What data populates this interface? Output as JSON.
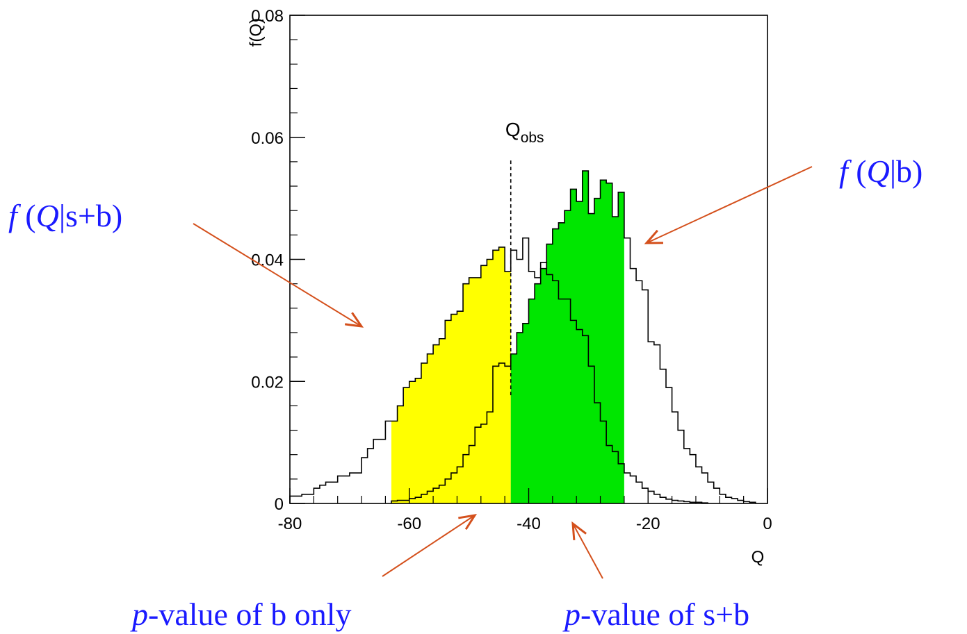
{
  "chart_data": {
    "type": "histogram",
    "xlabel": "Q",
    "ylabel": "f(Q)",
    "xlim": [
      -80,
      0
    ],
    "ylim": [
      0,
      0.08
    ],
    "x_ticks": [
      -80,
      -60,
      -40,
      -20,
      0
    ],
    "x_tick_labels": [
      "-80",
      "-60",
      "-40",
      "-20",
      "0"
    ],
    "y_ticks": [
      0,
      0.02,
      0.04,
      0.06,
      0.08
    ],
    "y_tick_labels": [
      "0",
      "0.02",
      "0.04",
      "0.06",
      "0.08"
    ],
    "grid": false,
    "bin_width": 1,
    "q_obs": -43,
    "q_obs_label": {
      "main": "Q",
      "sub": "obs"
    },
    "series": [
      {
        "name": "f(Q|s+b)",
        "color": "#000000",
        "bin_start": -80,
        "values": [
          0.0012,
          0.0012,
          0.0015,
          0.0015,
          0.0025,
          0.003,
          0.0035,
          0.0035,
          0.0045,
          0.0045,
          0.005,
          0.005,
          0.0075,
          0.009,
          0.0105,
          0.0105,
          0.0135,
          0.0135,
          0.016,
          0.019,
          0.02,
          0.0205,
          0.023,
          0.0245,
          0.026,
          0.027,
          0.03,
          0.031,
          0.0315,
          0.036,
          0.037,
          0.037,
          0.039,
          0.04,
          0.0415,
          0.042,
          0.038,
          0.0415,
          0.04,
          0.0435,
          0.038,
          0.037,
          0.0395,
          0.0375,
          0.0365,
          0.0335,
          0.0335,
          0.03,
          0.0285,
          0.0275,
          0.0225,
          0.0165,
          0.0135,
          0.0095,
          0.0085,
          0.0065,
          0.005,
          0.0045,
          0.0035,
          0.0025,
          0.002,
          0.0015,
          0.001,
          0.0007,
          0.0005,
          0.0004,
          0.0003,
          0.0002,
          0.0002,
          0.0001
        ]
      },
      {
        "name": "f(Q|b)",
        "color": "#000000",
        "bin_start": -63,
        "values": [
          0.0004,
          0.0005,
          0.0005,
          0.0008,
          0.001,
          0.0015,
          0.002,
          0.0025,
          0.003,
          0.004,
          0.005,
          0.006,
          0.008,
          0.0095,
          0.0125,
          0.013,
          0.015,
          0.0225,
          0.023,
          0.0225,
          0.0245,
          0.028,
          0.0295,
          0.0335,
          0.036,
          0.0385,
          0.0425,
          0.045,
          0.046,
          0.048,
          0.0515,
          0.0495,
          0.0545,
          0.0475,
          0.05,
          0.053,
          0.0525,
          0.047,
          0.051,
          0.0435,
          0.0385,
          0.0365,
          0.035,
          0.0265,
          0.026,
          0.022,
          0.019,
          0.015,
          0.012,
          0.009,
          0.008,
          0.006,
          0.005,
          0.0035,
          0.0025,
          0.0015,
          0.001,
          0.0008,
          0.0005,
          0.0003,
          0.0002
        ]
      }
    ],
    "fill_regions": [
      {
        "name": "p-value of b only",
        "series": "f(Q|s+b)",
        "from": -63,
        "to": -43,
        "color": "#ffff00"
      },
      {
        "name": "p-value of s+b",
        "series": "f(Q|b)",
        "from": -43,
        "to": -24,
        "color": "#00e600"
      }
    ],
    "annotations": [
      {
        "name": "f (Q|s+b)",
        "color": "#1a1aff"
      },
      {
        "name": "f (Q|b)",
        "color": "#1a1aff"
      },
      {
        "name": "p-value of b only",
        "color": "#1a1aff"
      },
      {
        "name": "p-value of s+b",
        "color": "#1a1aff"
      }
    ],
    "arrow_color": "#d4501c"
  },
  "labels": {
    "fsb": {
      "f": "f",
      "open": " (",
      "q": "Q",
      "rest": "|s+b)"
    },
    "fb": {
      "f": "f",
      "open": " (",
      "q": "Q",
      "rest": "|b)"
    },
    "pb": {
      "p": "p",
      "rest": "-value of b only"
    },
    "psb": {
      "p": "p",
      "rest": "-value of s+b"
    }
  }
}
